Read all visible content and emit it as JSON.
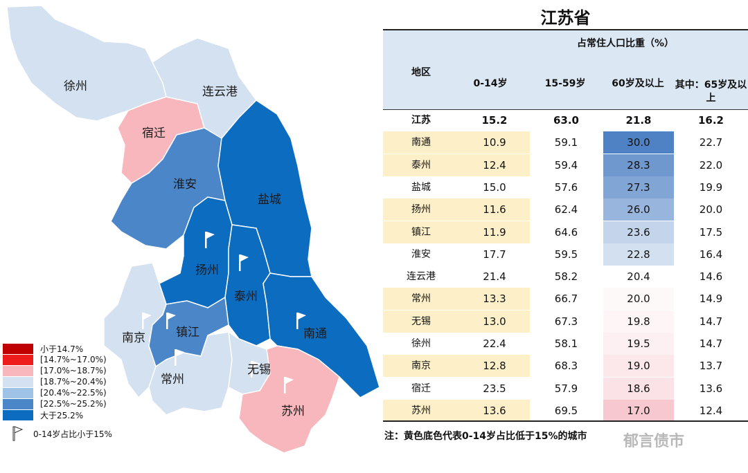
{
  "legend": {
    "items": [
      {
        "label": "小于14.7%",
        "color": "#c00000"
      },
      {
        "label": "[14.7%~17.0%)",
        "color": "#ee1c1c"
      },
      {
        "label": "[17.0%~18.7%)",
        "color": "#f7b7bd"
      },
      {
        "label": "[18.7%~20.4%)",
        "color": "#d3e1f0"
      },
      {
        "label": "[20.4%~22.5%)",
        "color": "#9fc3e6"
      },
      {
        "label": "[22.5%~25.2%)",
        "color": "#4a86c8"
      },
      {
        "label": "大于25.2%",
        "color": "#0b6cc0"
      }
    ],
    "flag_label": "0-14岁占比小于15%"
  },
  "map_labels": [
    "徐州",
    "连云港",
    "宿迁",
    "淮安",
    "盐城",
    "扬州",
    "泰州",
    "南京",
    "镇江",
    "南通",
    "常州",
    "无锡",
    "苏州"
  ],
  "chart_data": {
    "type": "table",
    "title": "江苏省",
    "group_header": "占常住人口比重（%）",
    "columns": [
      "地区",
      "0-14岁",
      "15-59岁",
      "60岁及以上",
      "其中：65岁及以上"
    ],
    "rows": [
      {
        "region": "江苏",
        "c0_14": "15.2",
        "c15_59": "63.0",
        "c60": "21.8",
        "c65": "16.2",
        "highlight": false,
        "bold": true
      },
      {
        "region": "南通",
        "c0_14": "10.9",
        "c15_59": "59.1",
        "c60": "30.0",
        "c65": "22.7",
        "highlight": true,
        "bold": false
      },
      {
        "region": "泰州",
        "c0_14": "12.4",
        "c15_59": "59.4",
        "c60": "28.3",
        "c65": "22.0",
        "highlight": true,
        "bold": false
      },
      {
        "region": "盐城",
        "c0_14": "15.0",
        "c15_59": "57.6",
        "c60": "27.3",
        "c65": "19.9",
        "highlight": false,
        "bold": false
      },
      {
        "region": "扬州",
        "c0_14": "11.6",
        "c15_59": "62.4",
        "c60": "26.0",
        "c65": "20.0",
        "highlight": true,
        "bold": false
      },
      {
        "region": "镇江",
        "c0_14": "11.9",
        "c15_59": "64.6",
        "c60": "23.6",
        "c65": "17.5",
        "highlight": true,
        "bold": false
      },
      {
        "region": "淮安",
        "c0_14": "17.7",
        "c15_59": "59.5",
        "c60": "22.8",
        "c65": "16.4",
        "highlight": false,
        "bold": false
      },
      {
        "region": "连云港",
        "c0_14": "21.4",
        "c15_59": "58.2",
        "c60": "20.4",
        "c65": "14.6",
        "highlight": false,
        "bold": false
      },
      {
        "region": "常州",
        "c0_14": "13.3",
        "c15_59": "66.7",
        "c60": "20.0",
        "c65": "14.9",
        "highlight": true,
        "bold": false
      },
      {
        "region": "无锡",
        "c0_14": "13.0",
        "c15_59": "67.3",
        "c60": "19.8",
        "c65": "14.7",
        "highlight": true,
        "bold": false
      },
      {
        "region": "徐州",
        "c0_14": "22.4",
        "c15_59": "58.1",
        "c60": "19.5",
        "c65": "14.7",
        "highlight": false,
        "bold": false
      },
      {
        "region": "南京",
        "c0_14": "12.8",
        "c15_59": "68.3",
        "c60": "19.0",
        "c65": "13.7",
        "highlight": true,
        "bold": false
      },
      {
        "region": "宿迁",
        "c0_14": "23.5",
        "c15_59": "57.9",
        "c60": "18.6",
        "c65": "13.6",
        "highlight": false,
        "bold": false
      },
      {
        "region": "苏州",
        "c0_14": "13.6",
        "c15_59": "69.5",
        "c60": "17.0",
        "c65": "12.4",
        "highlight": true,
        "bold": false
      }
    ],
    "note": "注：黄色底色代表0-14岁占比低于15%的城市"
  },
  "watermark": "郁言债市",
  "colors": {
    "highlight": "#fdf0c8",
    "header_bg": "#dbe7f3",
    "heat_high": "#4f82c4",
    "heat_mid": "#ffffff",
    "heat_low": "#f7c8cf"
  }
}
